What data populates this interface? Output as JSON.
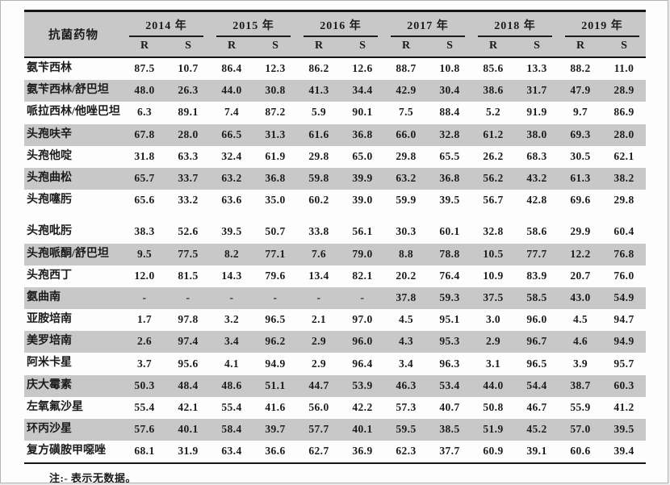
{
  "colors": {
    "stripe": "#c8c8c8",
    "rule": "#151515",
    "text": "#1b1b1b"
  },
  "note": "注:- 表示无数据。",
  "table": {
    "title_column_header": "抗菌药物",
    "years": [
      "2014 年",
      "2015 年",
      "2016 年",
      "2017 年",
      "2018 年",
      "2019 年"
    ],
    "subheaders": [
      "R",
      "S"
    ],
    "rows": [
      {
        "drug": "氨苄西林",
        "shaded": false,
        "gap_above": false,
        "values": [
          "87.5",
          "10.7",
          "86.4",
          "12.3",
          "86.2",
          "12.6",
          "88.7",
          "10.8",
          "85.6",
          "13.3",
          "88.2",
          "11.0"
        ]
      },
      {
        "drug": "氨苄西林/舒巴坦",
        "shaded": true,
        "gap_above": false,
        "values": [
          "48.0",
          "26.3",
          "44.0",
          "30.8",
          "41.3",
          "34.4",
          "42.9",
          "30.4",
          "38.6",
          "31.7",
          "47.9",
          "28.9"
        ]
      },
      {
        "drug": "哌拉西林/他唑巴坦",
        "shaded": false,
        "gap_above": false,
        "values": [
          "6.3",
          "89.1",
          "7.4",
          "87.2",
          "5.9",
          "90.1",
          "7.5",
          "88.4",
          "5.2",
          "91.9",
          "9.7",
          "86.9"
        ]
      },
      {
        "drug": "头孢呋辛",
        "shaded": true,
        "gap_above": false,
        "values": [
          "67.8",
          "28.0",
          "66.5",
          "31.3",
          "61.6",
          "36.8",
          "66.0",
          "32.8",
          "61.2",
          "38.0",
          "69.3",
          "28.0"
        ]
      },
      {
        "drug": "头孢他啶",
        "shaded": false,
        "gap_above": false,
        "values": [
          "31.8",
          "63.3",
          "32.4",
          "61.9",
          "29.8",
          "65.0",
          "29.8",
          "65.5",
          "26.2",
          "68.3",
          "30.5",
          "62.1"
        ]
      },
      {
        "drug": "头孢曲松",
        "shaded": true,
        "gap_above": false,
        "values": [
          "65.7",
          "33.7",
          "63.2",
          "36.8",
          "59.8",
          "39.9",
          "63.2",
          "36.8",
          "56.2",
          "43.2",
          "61.3",
          "38.2"
        ]
      },
      {
        "drug": "头孢噻肟",
        "shaded": false,
        "gap_above": false,
        "values": [
          "65.6",
          "33.2",
          "63.6",
          "35.0",
          "60.2",
          "39.0",
          "59.9",
          "39.5",
          "56.7",
          "42.8",
          "69.6",
          "29.8"
        ]
      },
      {
        "drug": "头孢吡肟",
        "shaded": false,
        "gap_above": true,
        "values": [
          "38.3",
          "52.6",
          "39.5",
          "50.7",
          "33.8",
          "56.1",
          "30.3",
          "60.1",
          "32.8",
          "58.6",
          "29.9",
          "60.4"
        ]
      },
      {
        "drug": "头孢哌酮/舒巴坦",
        "shaded": true,
        "gap_above": false,
        "values": [
          "9.5",
          "77.5",
          "8.2",
          "77.1",
          "7.6",
          "79.0",
          "8.8",
          "78.8",
          "10.5",
          "77.7",
          "12.2",
          "76.8"
        ]
      },
      {
        "drug": "头孢西丁",
        "shaded": false,
        "gap_above": false,
        "values": [
          "12.0",
          "81.5",
          "14.3",
          "79.6",
          "13.4",
          "82.1",
          "20.2",
          "76.4",
          "10.9",
          "83.9",
          "20.7",
          "76.0"
        ]
      },
      {
        "drug": "氨曲南",
        "shaded": true,
        "gap_above": false,
        "values": [
          "-",
          "-",
          "-",
          "-",
          "-",
          "-",
          "37.8",
          "59.3",
          "37.5",
          "58.5",
          "43.0",
          "54.9"
        ]
      },
      {
        "drug": "亚胺培南",
        "shaded": false,
        "gap_above": false,
        "values": [
          "1.7",
          "97.8",
          "3.2",
          "96.5",
          "2.1",
          "97.0",
          "4.5",
          "95.1",
          "3.0",
          "96.0",
          "4.5",
          "94.7"
        ]
      },
      {
        "drug": "美罗培南",
        "shaded": true,
        "gap_above": false,
        "values": [
          "2.6",
          "97.4",
          "3.4",
          "96.2",
          "2.9",
          "96.0",
          "4.3",
          "95.3",
          "2.9",
          "96.7",
          "4.6",
          "94.9"
        ]
      },
      {
        "drug": "阿米卡星",
        "shaded": false,
        "gap_above": false,
        "values": [
          "3.7",
          "95.6",
          "4.1",
          "94.9",
          "2.9",
          "96.4",
          "3.4",
          "96.3",
          "3.1",
          "96.5",
          "3.9",
          "95.7"
        ]
      },
      {
        "drug": "庆大霉素",
        "shaded": true,
        "gap_above": false,
        "values": [
          "50.3",
          "48.4",
          "48.6",
          "51.1",
          "44.7",
          "53.9",
          "46.3",
          "53.4",
          "44.0",
          "54.4",
          "38.7",
          "60.3"
        ]
      },
      {
        "drug": "左氧氟沙星",
        "shaded": false,
        "gap_above": false,
        "values": [
          "55.4",
          "42.1",
          "55.4",
          "41.6",
          "56.0",
          "42.2",
          "57.3",
          "40.7",
          "50.8",
          "46.7",
          "55.9",
          "41.2"
        ]
      },
      {
        "drug": "环丙沙星",
        "shaded": true,
        "gap_above": false,
        "values": [
          "57.6",
          "40.1",
          "58.4",
          "39.7",
          "57.7",
          "40.1",
          "59.5",
          "38.5",
          "51.9",
          "45.2",
          "57.0",
          "39.5"
        ]
      },
      {
        "drug": "复方磺胺甲噁唑",
        "shaded": false,
        "gap_above": false,
        "values": [
          "68.1",
          "31.9",
          "63.4",
          "36.6",
          "62.7",
          "36.9",
          "62.3",
          "37.7",
          "60.9",
          "39.1",
          "60.6",
          "39.4"
        ]
      }
    ]
  }
}
